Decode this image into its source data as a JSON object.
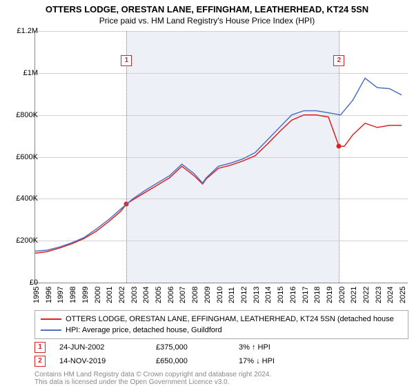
{
  "title": "OTTERS LODGE, ORESTAN LANE, EFFINGHAM, LEATHERHEAD, KT24 5SN",
  "subtitle": "Price paid vs. HM Land Registry's House Price Index (HPI)",
  "chart": {
    "type": "line",
    "xlim": [
      1995,
      2025.5
    ],
    "ylim": [
      0,
      1200000
    ],
    "ytick_step": 200000,
    "ytick_labels": [
      "£0",
      "£200K",
      "£400K",
      "£600K",
      "£800K",
      "£1M",
      "£1.2M"
    ],
    "xtick_step": 1,
    "background_band": {
      "from": 2002.48,
      "to": 2019.87,
      "color": "#eef0f7"
    },
    "grid_color": "#d0d0d0",
    "series": [
      {
        "name": "OTTERS LODGE, ORESTAN LANE, EFFINGHAM, LEATHERHEAD, KT24 5SN (detached house",
        "color": "#e02020",
        "data": [
          [
            1995,
            140000
          ],
          [
            1996,
            148000
          ],
          [
            1997,
            165000
          ],
          [
            1998,
            185000
          ],
          [
            1999,
            210000
          ],
          [
            2000,
            245000
          ],
          [
            2001,
            290000
          ],
          [
            2002,
            340000
          ],
          [
            2002.48,
            375000
          ],
          [
            2003,
            395000
          ],
          [
            2004,
            430000
          ],
          [
            2005,
            465000
          ],
          [
            2006,
            500000
          ],
          [
            2007,
            555000
          ],
          [
            2008,
            510000
          ],
          [
            2008.7,
            470000
          ],
          [
            2009,
            495000
          ],
          [
            2010,
            545000
          ],
          [
            2011,
            560000
          ],
          [
            2012,
            580000
          ],
          [
            2013,
            605000
          ],
          [
            2014,
            660000
          ],
          [
            2015,
            720000
          ],
          [
            2016,
            775000
          ],
          [
            2017,
            800000
          ],
          [
            2018,
            800000
          ],
          [
            2019,
            790000
          ],
          [
            2019.87,
            650000
          ],
          [
            2020.3,
            650000
          ],
          [
            2021,
            705000
          ],
          [
            2022,
            760000
          ],
          [
            2023,
            740000
          ],
          [
            2024,
            750000
          ],
          [
            2025,
            750000
          ]
        ]
      },
      {
        "name": "HPI: Average price, detached house, Guildford",
        "color": "#5070c0",
        "data": [
          [
            1995,
            150000
          ],
          [
            1996,
            155000
          ],
          [
            1997,
            170000
          ],
          [
            1998,
            190000
          ],
          [
            1999,
            215000
          ],
          [
            2000,
            255000
          ],
          [
            2001,
            300000
          ],
          [
            2002,
            350000
          ],
          [
            2003,
            400000
          ],
          [
            2004,
            440000
          ],
          [
            2005,
            475000
          ],
          [
            2006,
            510000
          ],
          [
            2007,
            565000
          ],
          [
            2008,
            520000
          ],
          [
            2008.7,
            475000
          ],
          [
            2009,
            500000
          ],
          [
            2010,
            555000
          ],
          [
            2011,
            570000
          ],
          [
            2012,
            590000
          ],
          [
            2013,
            620000
          ],
          [
            2014,
            680000
          ],
          [
            2015,
            740000
          ],
          [
            2016,
            800000
          ],
          [
            2017,
            820000
          ],
          [
            2018,
            820000
          ],
          [
            2019,
            810000
          ],
          [
            2020,
            800000
          ],
          [
            2021,
            870000
          ],
          [
            2022,
            975000
          ],
          [
            2023,
            930000
          ],
          [
            2024,
            925000
          ],
          [
            2025,
            895000
          ]
        ]
      }
    ],
    "markers": [
      {
        "label": "1",
        "x": 2002.48,
        "box_y": 1060000,
        "point_y": 375000
      },
      {
        "label": "2",
        "x": 2019.87,
        "box_y": 1060000,
        "point_y": 650000
      }
    ]
  },
  "legend_items": [
    {
      "color": "#e02020",
      "text": "OTTERS LODGE, ORESTAN LANE, EFFINGHAM, LEATHERHEAD, KT24 5SN (detached house"
    },
    {
      "color": "#5070c0",
      "text": "HPI: Average price, detached house, Guildford"
    }
  ],
  "transactions": [
    {
      "label": "1",
      "date": "24-JUN-2002",
      "price": "£375,000",
      "delta": "3% ↑ HPI"
    },
    {
      "label": "2",
      "date": "14-NOV-2019",
      "price": "£650,000",
      "delta": "17% ↓ HPI"
    }
  ],
  "footer": {
    "line1": "Contains HM Land Registry data © Crown copyright and database right 2024.",
    "line2": "This data is licensed under the Open Government Licence v3.0."
  }
}
